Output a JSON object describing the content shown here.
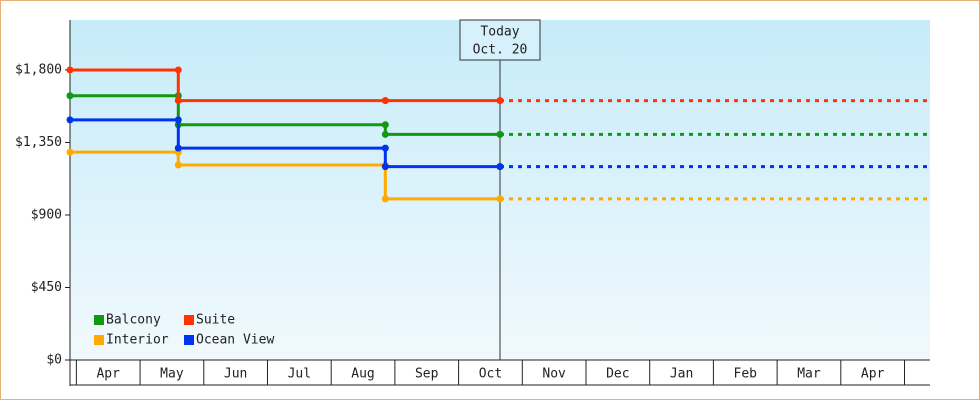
{
  "chart_data": {
    "type": "step",
    "xlim": [
      -0.1,
      13.4
    ],
    "xticks": [
      {
        "value": 0.5,
        "label": "Apr"
      },
      {
        "value": 1.5,
        "label": "May"
      },
      {
        "value": 2.5,
        "label": "Jun"
      },
      {
        "value": 3.5,
        "label": "Jul"
      },
      {
        "value": 4.5,
        "label": "Aug"
      },
      {
        "value": 5.5,
        "label": "Sep"
      },
      {
        "value": 6.5,
        "label": "Oct"
      },
      {
        "value": 7.5,
        "label": "Nov"
      },
      {
        "value": 8.5,
        "label": "Dec"
      },
      {
        "value": 9.5,
        "label": "Jan"
      },
      {
        "value": 10.5,
        "label": "Feb"
      },
      {
        "value": 11.5,
        "label": "Mar"
      },
      {
        "value": 12.5,
        "label": "Apr"
      }
    ],
    "ylim": [
      0,
      2110
    ],
    "yticks": [
      {
        "value": 0,
        "label": "$0"
      },
      {
        "value": 450,
        "label": "$450"
      },
      {
        "value": 900,
        "label": "$900"
      },
      {
        "value": 1350,
        "label": "$1,350"
      },
      {
        "value": 1800,
        "label": "$1,800"
      }
    ],
    "today": {
      "x": 6.65,
      "lines": [
        "Today",
        "Oct. 20"
      ]
    },
    "legend": "bottom-left",
    "series": [
      {
        "name": "Balcony",
        "color": "#119911",
        "x": [
          -0.1,
          1.6,
          4.85,
          6.65
        ],
        "values": [
          1640,
          1460,
          1400,
          1400
        ]
      },
      {
        "name": "Suite",
        "color": "#ff3300",
        "x": [
          -0.1,
          1.6,
          4.85,
          6.65
        ],
        "values": [
          1800,
          1610,
          1610,
          1610
        ]
      },
      {
        "name": "Interior",
        "color": "#ffaa00",
        "x": [
          -0.1,
          1.6,
          4.85,
          6.65
        ],
        "values": [
          1290,
          1210,
          1000,
          1000
        ]
      },
      {
        "name": "Ocean View",
        "color": "#0033ee",
        "x": [
          -0.1,
          1.6,
          4.85,
          6.65
        ],
        "values": [
          1490,
          1315,
          1200,
          1200
        ]
      }
    ]
  }
}
